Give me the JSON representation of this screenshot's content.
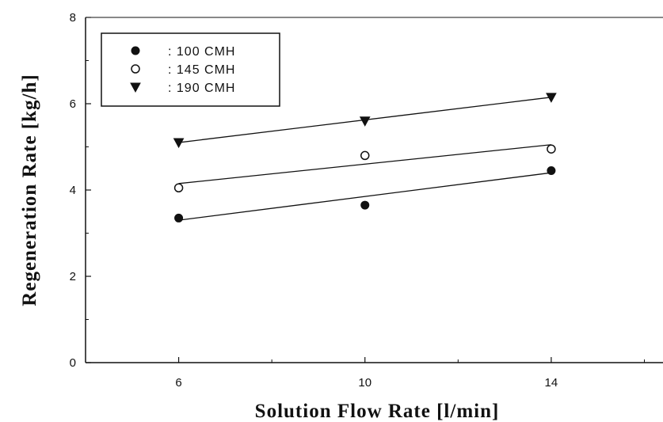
{
  "chart_data": {
    "type": "scatter",
    "xlabel": "Solution Flow Rate [l/min]",
    "ylabel": "Regeneration Rate [kg/h]",
    "xlim": [
      4,
      16.4
    ],
    "ylim": [
      0,
      8
    ],
    "xticks": [
      6,
      10,
      14
    ],
    "yticks": [
      0,
      2,
      4,
      6,
      8
    ],
    "grid": false,
    "legend_position": "top-left",
    "x": [
      6,
      10,
      14
    ],
    "series": [
      {
        "name": ": 100 CMH",
        "marker": "filled-circle",
        "values": [
          3.35,
          3.65,
          4.45
        ],
        "fit": [
          3.3,
          4.4
        ]
      },
      {
        "name": ": 145 CMH",
        "marker": "open-circle",
        "values": [
          4.05,
          4.8,
          4.95
        ],
        "fit": [
          4.15,
          5.05
        ]
      },
      {
        "name": ": 190 CMH",
        "marker": "filled-triangle-down",
        "values": [
          5.1,
          5.6,
          6.15
        ],
        "fit": [
          5.1,
          6.15
        ]
      }
    ]
  }
}
